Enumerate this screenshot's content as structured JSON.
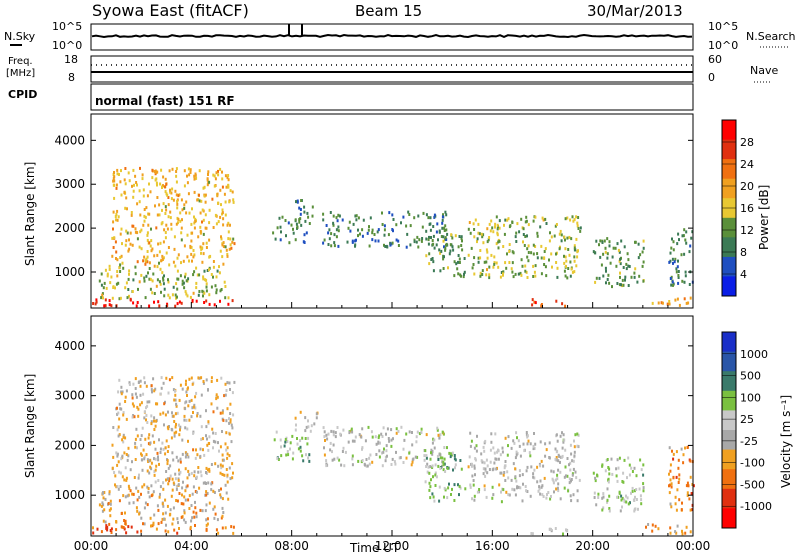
{
  "header": {
    "station": "Syowa East (fitACF)",
    "beam": "Beam 15",
    "date": "30/Mar/2013"
  },
  "noise_panel": {
    "left_label": "N.Sky",
    "right_label": "N.Search",
    "left_ticks": [
      "10^5",
      "10^0"
    ],
    "right_ticks": [
      "10^5",
      "10^0"
    ]
  },
  "freq_panel": {
    "left_label_1": "Freq.",
    "left_label_2": "[MHz]",
    "right_label": "Nave",
    "left_ticks": [
      "18",
      "8"
    ],
    "right_ticks": [
      "60",
      "0"
    ]
  },
  "cpid": {
    "label": "CPID",
    "mode": "normal (fast) 151 RF"
  },
  "colors": {
    "power": [
      "#0a1ee6",
      "#1f4fc0",
      "#3b7a55",
      "#5a8f3a",
      "#e8c832",
      "#f0a020",
      "#f07010",
      "#e03010",
      "#ff0000"
    ],
    "velocity": [
      "#1a2fc8",
      "#2a56a8",
      "#3a7a6a",
      "#7ac040",
      "#c8c8c8",
      "#a8a8a8",
      "#f0a020",
      "#f07010",
      "#e03010",
      "#ff0000"
    ]
  },
  "chart_data": [
    {
      "type": "heatmap",
      "name": "power",
      "xlabel": "",
      "ylabel": "Slant Range [km]",
      "xlim": [
        0,
        24
      ],
      "ylim": [
        180,
        4600
      ],
      "yticks": [
        "1000",
        "2000",
        "3000",
        "4000"
      ],
      "colorbar_label": "Power [dB]",
      "colorbar_ticks": [
        "4",
        "8",
        "12",
        "16",
        "20",
        "24",
        "28"
      ],
      "colorbar_range": [
        0,
        32
      ],
      "regions": [
        {
          "t0": 0.0,
          "t1": 5.7,
          "r0": 250,
          "r1": 420,
          "v": 29
        },
        {
          "t0": 0.3,
          "t1": 5.5,
          "r0": 420,
          "r1": 1200,
          "v": 14
        },
        {
          "t0": 0.8,
          "t1": 5.7,
          "r0": 1200,
          "r1": 3400,
          "v": 18
        },
        {
          "t0": 7.2,
          "t1": 8.7,
          "r0": 1700,
          "r1": 2300,
          "v": 10
        },
        {
          "t0": 8.1,
          "t1": 9.0,
          "r0": 2300,
          "r1": 2700,
          "v": 9
        },
        {
          "t0": 9.2,
          "t1": 14.2,
          "r0": 1600,
          "r1": 2400,
          "v": 9
        },
        {
          "t0": 13.3,
          "t1": 14.9,
          "r0": 900,
          "r1": 1900,
          "v": 11
        },
        {
          "t0": 15.0,
          "t1": 19.5,
          "r0": 900,
          "r1": 2300,
          "v": 14
        },
        {
          "t0": 17.5,
          "t1": 19.0,
          "r0": 250,
          "r1": 420,
          "v": 26
        },
        {
          "t0": 20.0,
          "t1": 22.0,
          "r0": 700,
          "r1": 1800,
          "v": 11
        },
        {
          "t0": 22.0,
          "t1": 23.9,
          "r0": 250,
          "r1": 450,
          "v": 20
        },
        {
          "t0": 23.0,
          "t1": 24.0,
          "r0": 700,
          "r1": 2000,
          "v": 9
        }
      ]
    },
    {
      "type": "heatmap",
      "name": "velocity",
      "xlabel": "Time UT",
      "ylabel": "Slant Range [km]",
      "xlim": [
        0,
        24
      ],
      "ylim": [
        180,
        4600
      ],
      "xticks": [
        "00:00",
        "04:00",
        "08:00",
        "12:00",
        "16:00",
        "20:00",
        "00:00"
      ],
      "yticks": [
        "1000",
        "2000",
        "3000",
        "4000"
      ],
      "colorbar_label": "Velocity [m s⁻¹]",
      "colorbar_ticks": [
        "1000",
        "500",
        "100",
        "25",
        "-25",
        "-100",
        "-500",
        "-1000"
      ],
      "colorbar_range": [
        -1200,
        1200
      ],
      "regions": [
        {
          "t0": 0.0,
          "t1": 5.7,
          "r0": 250,
          "r1": 420,
          "v": -600
        },
        {
          "t0": 0.3,
          "t1": 5.5,
          "r0": 420,
          "r1": 1200,
          "v": -300
        },
        {
          "t0": 0.8,
          "t1": 5.7,
          "r0": 1200,
          "r1": 3400,
          "v": -200
        },
        {
          "t0": 7.2,
          "t1": 8.7,
          "r0": 1700,
          "r1": 2300,
          "v": 300
        },
        {
          "t0": 8.1,
          "t1": 9.0,
          "r0": 2300,
          "r1": 2700,
          "v": 0
        },
        {
          "t0": 9.2,
          "t1": 14.2,
          "r0": 1600,
          "r1": 2400,
          "v": 10
        },
        {
          "t0": 13.3,
          "t1": 14.9,
          "r0": 900,
          "r1": 1900,
          "v": 400
        },
        {
          "t0": 15.0,
          "t1": 19.5,
          "r0": 900,
          "r1": 2300,
          "v": 20
        },
        {
          "t0": 17.5,
          "t1": 19.0,
          "r0": 250,
          "r1": 420,
          "v": 80
        },
        {
          "t0": 20.0,
          "t1": 22.0,
          "r0": 700,
          "r1": 1800,
          "v": 200
        },
        {
          "t0": 22.0,
          "t1": 23.9,
          "r0": 250,
          "r1": 450,
          "v": -400
        },
        {
          "t0": 23.0,
          "t1": 24.0,
          "r0": 700,
          "r1": 2000,
          "v": -500
        }
      ]
    }
  ]
}
